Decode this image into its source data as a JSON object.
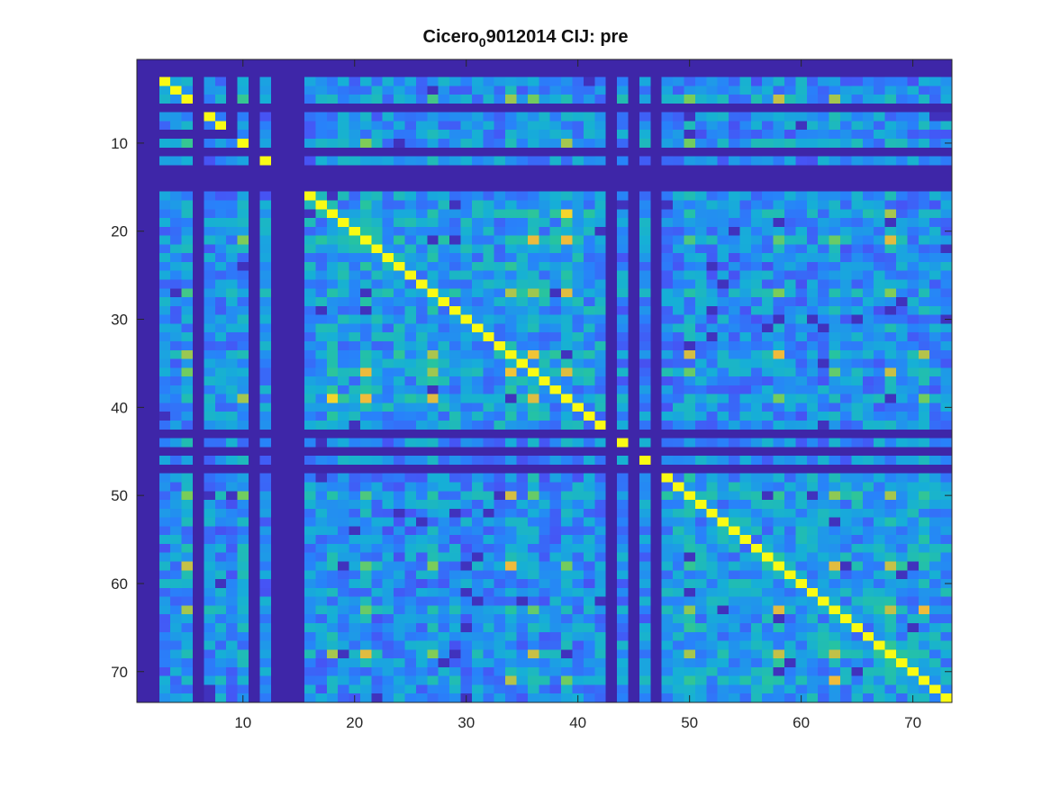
{
  "chart_data": {
    "type": "heatmap",
    "title_main": "Cicero",
    "title_subscript": "0",
    "title_rest": "9012014 CIJ: pre",
    "x_ticks": [
      10,
      20,
      30,
      40,
      50,
      60,
      70
    ],
    "y_ticks": [
      10,
      20,
      30,
      40,
      50,
      60,
      70
    ],
    "xlim": [
      0.5,
      73.5
    ],
    "ylim": [
      0.5,
      73.5
    ],
    "n": 73,
    "colormap": "parula",
    "empty_rows": [
      1,
      2,
      6,
      11,
      13,
      14,
      15,
      43,
      45,
      47
    ],
    "empty_cols": [
      1,
      2,
      6,
      9,
      11,
      13,
      14,
      15,
      43,
      45,
      47
    ],
    "diagonal_blocks": [
      [
        3,
        5
      ],
      [
        7,
        8
      ],
      [
        10,
        10
      ],
      [
        12,
        12
      ],
      [
        16,
        42
      ],
      [
        44,
        44
      ],
      [
        46,
        46
      ],
      [
        48,
        73
      ]
    ],
    "highlight_indices": [
      5,
      10,
      18,
      21,
      27,
      34,
      36,
      39,
      50,
      58,
      63,
      68,
      71
    ]
  }
}
